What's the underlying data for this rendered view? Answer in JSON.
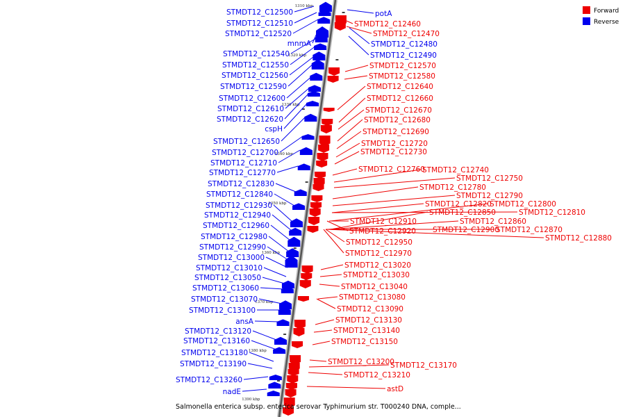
{
  "legend": {
    "forward_label": "Forward",
    "reverse_label": "Reverse",
    "forward_color": "#ee0000",
    "reverse_color": "#0000ee"
  },
  "caption": "Salmonella enterica subsp. enterica serovar Typhimurium str. T000240 DNA, comple...",
  "scale_labels": [
    "1310 kbp",
    "1320 kbp",
    "1330 kbp",
    "1340 kbp",
    "1350 kbp",
    "1360 kbp",
    "1370 kbp",
    "1380 kbp",
    "1390 kbp"
  ],
  "reverse_genes": [
    "STMDT12_C12500",
    "STMDT12_C12510",
    "STMDT12_C12520",
    "mnmA",
    "STMDT12_C12540",
    "STMDT12_C12550",
    "STMDT12_C12560",
    "STMDT12_C12590",
    "STMDT12_C12600",
    "STMDT12_C12610",
    "STMDT12_C12620",
    "cspH",
    "STMDT12_C12650",
    "STMDT12_C12700",
    "STMDT12_C12710",
    "STMDT12_C12770",
    "STMDT12_C12830",
    "STMDT12_C12840",
    "STMDT12_C12930",
    "STMDT12_C12940",
    "STMDT12_C12960",
    "STMDT12_C12980",
    "STMDT12_C12990",
    "STMDT12_C13000",
    "STMDT12_C13010",
    "STMDT12_C13050",
    "STMDT12_C13060",
    "STMDT12_C13070",
    "STMDT12_C13100",
    "ansA",
    "STMDT12_C13120",
    "STMDT12_C13160",
    "STMDT12_C13180",
    "STMDT12_C13190",
    "STMDT12_C13260",
    "nadE",
    "potA",
    "STMDT12_C12480",
    "STMDT12_C12490"
  ],
  "forward_genes": [
    "STMDT12_C12460",
    "STMDT12_C12470",
    "STMDT12_C12570",
    "STMDT12_C12580",
    "STMDT12_C12640",
    "STMDT12_C12660",
    "STMDT12_C12670",
    "STMDT12_C12680",
    "STMDT12_C12690",
    "STMDT12_C12720",
    "STMDT12_C12730",
    "STMDT12_C12760",
    "STMDT12_C12740",
    "STMDT12_C12750",
    "STMDT12_C12780",
    "STMDT12_C12790",
    "STMDT12_C12820",
    "STMDT12_C12800",
    "STMDT12_C12850",
    "STMDT12_C12810",
    "STMDT12_C12910",
    "STMDT12_C12860",
    "STMDT12_C12920",
    "STMDT12_C12900",
    "STMDT12_C12870",
    "STMDT12_C12880",
    "STMDT12_C12950",
    "STMDT12_C12970",
    "STMDT12_C13020",
    "STMDT12_C13030",
    "STMDT12_C13040",
    "STMDT12_C13080",
    "STMDT12_C13090",
    "STMDT12_C13130",
    "STMDT12_C13140",
    "STMDT12_C13150",
    "STMDT12_C13200",
    "STMDT12_C13170",
    "STMDT12_C13210",
    "astD"
  ]
}
